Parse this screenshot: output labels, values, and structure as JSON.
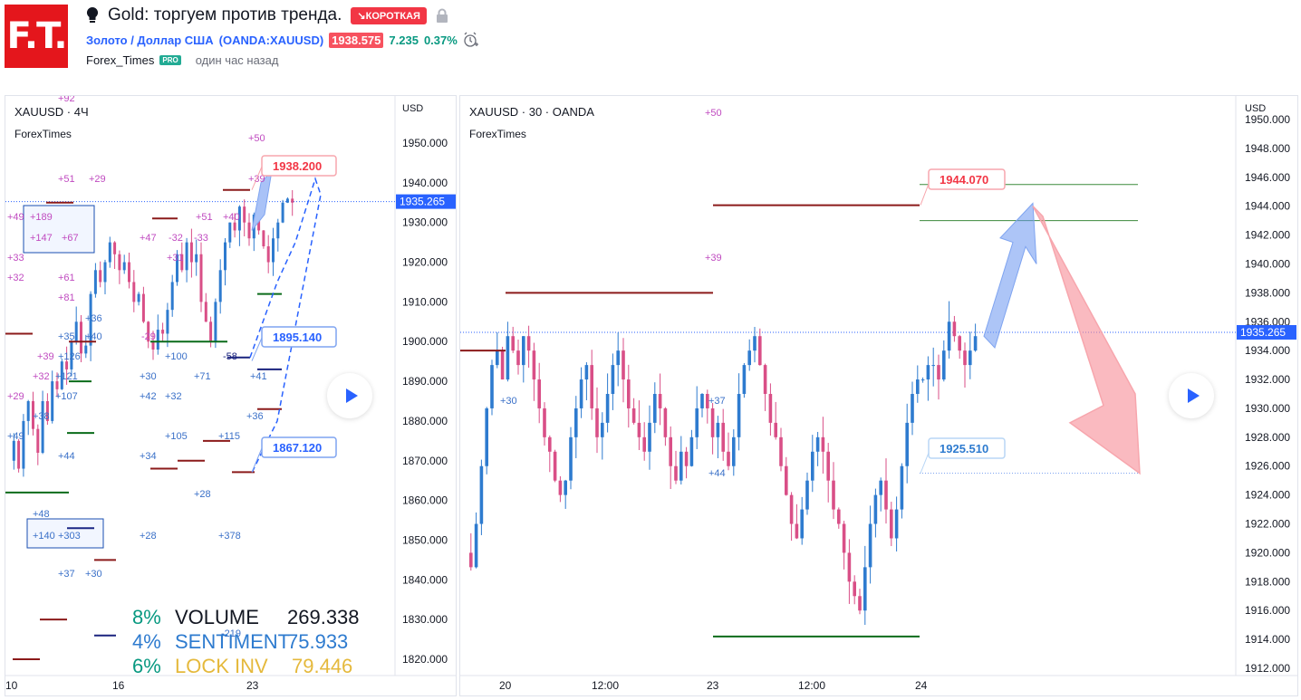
{
  "header": {
    "logo_text": "F.T.",
    "title": "Gold: торгуем против тренда.",
    "badge": "↘КОРОТКАЯ",
    "symbol_name": "Золото / Доллар США",
    "symbol_code": "(OANDA:XAUUSD)",
    "price": "1938.575",
    "change": "7.235",
    "change_pct": "0.37%",
    "author": "Forex_Times",
    "pro": "PRO",
    "time_ago": "один час назад"
  },
  "left_chart": {
    "title": "XAUUSD · 4Ч",
    "watermark": "ForexTimes",
    "currency": "USD",
    "y_ticks": [
      "1950.000",
      "1940.000",
      "1930.000",
      "1920.000",
      "1910.000",
      "1900.000",
      "1890.000",
      "1880.000",
      "1870.000",
      "1860.000",
      "1850.000",
      "1840.000",
      "1830.000",
      "1820.000"
    ],
    "current_price": "1935.265",
    "x_ticks": [
      "10",
      "16",
      "23"
    ],
    "callouts": [
      "1938.200",
      "1895.140",
      "1867.120"
    ],
    "annotations": [
      "+92",
      "+50",
      "+51",
      "+29",
      "+39",
      "+49",
      "+189",
      "+147",
      "+67",
      "+47",
      "-32",
      "-33",
      "+51",
      "+40",
      "+33",
      "+31",
      "+32",
      "+61",
      "+81",
      "+36",
      "+35",
      "+40",
      "-29",
      "+39",
      "+126",
      "+32",
      "+121",
      "+100",
      "+30",
      "+71",
      "-58",
      "+41",
      "+29",
      "+107",
      "+42",
      "+32",
      "+36",
      "+49",
      "+38",
      "+44",
      "+105",
      "+115",
      "+34",
      "+28",
      "+48",
      "+140",
      "+303",
      "+28",
      "+378",
      "+37",
      "+30",
      "-219"
    ],
    "legend": [
      {
        "pct": "8%",
        "label": "VOLUME",
        "value": "269.338",
        "color": "#089981",
        "label_color": "#131722"
      },
      {
        "pct": "4%",
        "label": "SENTIMENT",
        "value": "75.933",
        "color": "#2e7bcf",
        "label_color": "#2e7bcf"
      },
      {
        "pct": "6%",
        "label": "LOCK INV",
        "value": "79.446",
        "color": "#089981",
        "label_color": "#e5b93c"
      }
    ]
  },
  "right_chart": {
    "title": "XAUUSD · 30 · OANDA",
    "watermark": "ForexTimes",
    "currency": "USD",
    "y_ticks": [
      "1950.000",
      "1948.000",
      "1946.000",
      "1944.000",
      "1942.000",
      "1940.000",
      "1938.000",
      "1936.000",
      "1934.000",
      "1932.000",
      "1930.000",
      "1928.000",
      "1926.000",
      "1924.000",
      "1922.000",
      "1920.000",
      "1918.000",
      "1916.000",
      "1914.000",
      "1912.000"
    ],
    "current_price": "1935.265",
    "x_ticks": [
      "20",
      "12:00",
      "23",
      "12:00",
      "24"
    ],
    "callouts": [
      "1944.070",
      "1925.510"
    ],
    "annotations": [
      "+50",
      "+39",
      "+30",
      "+37",
      "+44"
    ]
  },
  "colors": {
    "up": "#2e7bcf",
    "down": "#d94f87",
    "short": "#f23645",
    "accent": "#2962ff",
    "green": "#089981"
  }
}
